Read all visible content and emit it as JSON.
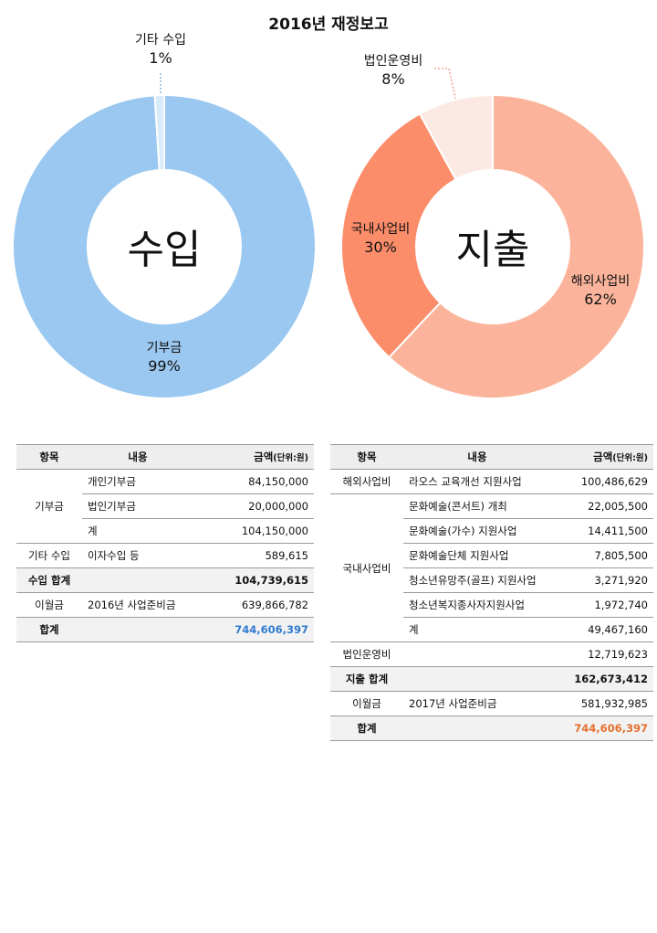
{
  "title": "2016년 재정보고",
  "colors": {
    "income_main": "#9ac8f0",
    "income_other": "#d7ebfa",
    "exp_overseas": "#fbb49b",
    "exp_domestic": "#fc8d6a",
    "exp_admin": "#fde9e3",
    "total_income": "#2f7bcf",
    "total_expense": "#e36f2e"
  },
  "chart_data": [
    {
      "type": "pie",
      "center_label": "수입",
      "slices": [
        {
          "name": "기부금",
          "value": 99,
          "pct_label": "99%"
        },
        {
          "name": "기타 수입",
          "value": 1,
          "pct_label": "1%"
        }
      ]
    },
    {
      "type": "pie",
      "center_label": "지출",
      "slices": [
        {
          "name": "해외사업비",
          "value": 62,
          "pct_label": "62%"
        },
        {
          "name": "국내사업비",
          "value": 30,
          "pct_label": "30%"
        },
        {
          "name": "법인운영비",
          "value": 8,
          "pct_label": "8%"
        }
      ]
    }
  ],
  "income_table": {
    "headers": {
      "item": "항목",
      "content": "내용",
      "amount": "금액",
      "unit": "(단위:원)"
    },
    "donation": {
      "label": "기부금",
      "rows": [
        {
          "content": "개인기부금",
          "amount": "84,150,000"
        },
        {
          "content": "법인기부금",
          "amount": "20,000,000"
        },
        {
          "content": "계",
          "amount": "104,150,000"
        }
      ]
    },
    "other": {
      "label": "기타 수입",
      "content": "이자수입 등",
      "amount": "589,615"
    },
    "subtotal": {
      "label": "수입 합계",
      "amount": "104,739,615"
    },
    "carry": {
      "label": "이월금",
      "content": "2016년 사업준비금",
      "amount": "639,866,782"
    },
    "total": {
      "label": "합계",
      "amount": "744,606,397"
    }
  },
  "expense_table": {
    "headers": {
      "item": "항목",
      "content": "내용",
      "amount": "금액",
      "unit": "(단위:원)"
    },
    "overseas": {
      "label": "해외사업비",
      "content": "라오스 교육개선 지원사업",
      "amount": "100,486,629"
    },
    "domestic": {
      "label": "국내사업비",
      "rows": [
        {
          "content": "문화예술(콘서트) 개최",
          "amount": "22,005,500"
        },
        {
          "content": "문화예술(가수) 지원사업",
          "amount": "14,411,500"
        },
        {
          "content": "문화예술단체 지원사업",
          "amount": "7,805,500"
        },
        {
          "content": "청소년유망주(골프) 지원사업",
          "amount": "3,271,920"
        },
        {
          "content": "청소년복지종사자지원사업",
          "amount": "1,972,740"
        },
        {
          "content": "계",
          "amount": "49,467,160"
        }
      ]
    },
    "admin": {
      "label": "법인운영비",
      "content": "",
      "amount": "12,719,623"
    },
    "subtotal": {
      "label": "지출 합계",
      "amount": "162,673,412"
    },
    "carry": {
      "label": "이월금",
      "content": "2017년 사업준비금",
      "amount": "581,932,985"
    },
    "total": {
      "label": "합계",
      "amount": "744,606,397"
    }
  }
}
